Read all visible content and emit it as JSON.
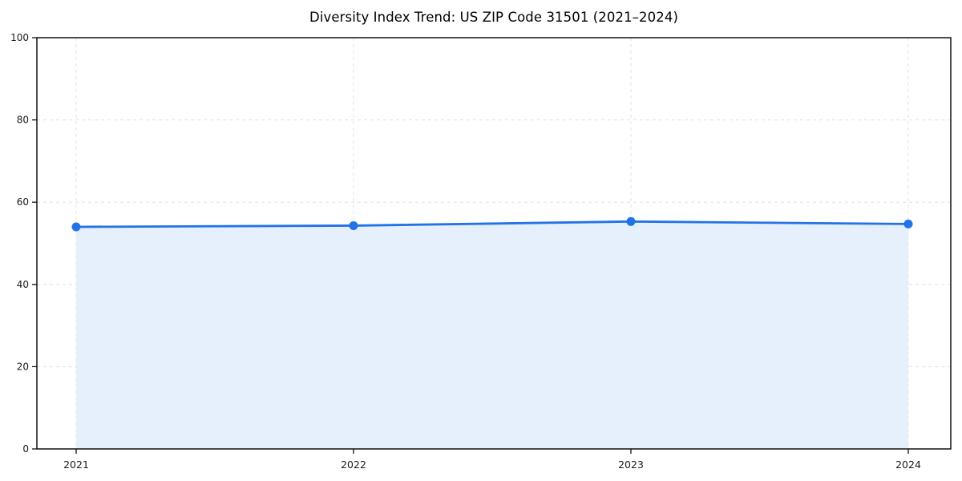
{
  "page": {
    "background": "#ffffff"
  },
  "chart_data": {
    "type": "area",
    "title": "Diversity Index Trend: US ZIP Code 31501 (2021–2024)",
    "x": [
      "2021",
      "2022",
      "2023",
      "2024"
    ],
    "series": [
      {
        "name": "Diversity Index",
        "values": [
          54.0,
          54.3,
          55.3,
          54.7
        ]
      }
    ],
    "xlabel": "",
    "ylabel": "",
    "ylim": [
      0,
      100
    ],
    "yticks": [
      0,
      20,
      40,
      60,
      80,
      100
    ],
    "grid": true,
    "grid_style": "dashed",
    "legend": false,
    "colors": {
      "line": "#2273e6",
      "marker": "#2273e6",
      "fill": "#e6effc",
      "grid": "#e0e0e0",
      "axis": "#000000",
      "tick_label": "#1a1a1a",
      "title": "#000000"
    }
  }
}
